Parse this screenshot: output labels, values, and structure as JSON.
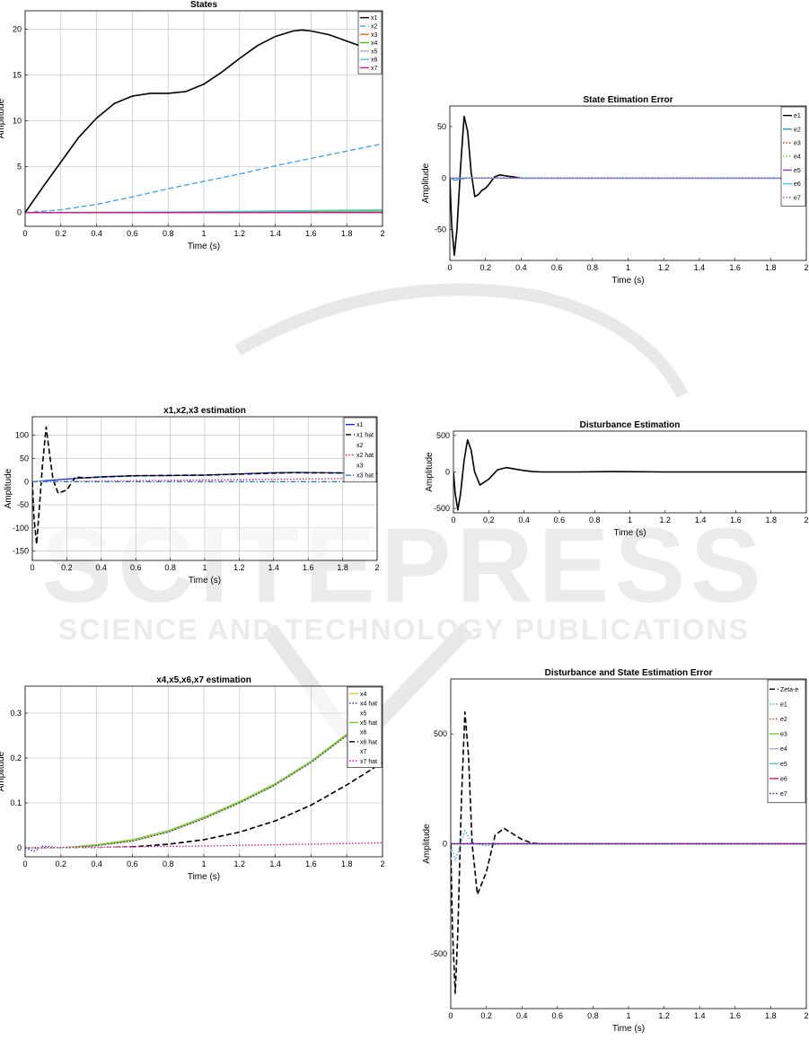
{
  "watermark": {
    "line1": "SCITEPRESS",
    "line2": "SCIENCE AND TECHNOLOGY PUBLICATIONS"
  },
  "chart_data": [
    {
      "id": "states",
      "type": "line",
      "title": "States",
      "xlabel": "Time (s)",
      "ylabel": "Amplitude",
      "xlim": [
        0,
        2
      ],
      "ylim": [
        -1.5,
        22
      ],
      "xticks": [
        0,
        0.2,
        0.4,
        0.6,
        0.8,
        1,
        1.2,
        1.4,
        1.6,
        1.8,
        2
      ],
      "yticks": [
        0,
        5,
        10,
        15,
        20
      ],
      "grid": true,
      "legend_position": "top-right",
      "series": [
        {
          "name": "x1",
          "color": "#000000",
          "dash": "solid",
          "x": [
            0,
            0.1,
            0.2,
            0.3,
            0.4,
            0.5,
            0.6,
            0.7,
            0.8,
            0.9,
            1.0,
            1.1,
            1.2,
            1.3,
            1.4,
            1.5,
            1.55,
            1.6,
            1.7,
            1.8,
            1.9,
            2.0
          ],
          "y": [
            0,
            2.8,
            5.5,
            8.2,
            10.3,
            11.9,
            12.7,
            13.0,
            13.0,
            13.2,
            14.0,
            15.3,
            16.8,
            18.2,
            19.2,
            19.8,
            19.9,
            19.8,
            19.4,
            18.7,
            18.0,
            17.3
          ]
        },
        {
          "name": "x2",
          "color": "#3aa0e8",
          "dash": "dashed",
          "x": [
            0,
            0.2,
            0.4,
            0.6,
            0.8,
            1.0,
            1.2,
            1.4,
            1.6,
            1.8,
            2.0
          ],
          "y": [
            0,
            0.3,
            0.9,
            1.7,
            2.6,
            3.4,
            4.2,
            5.1,
            5.9,
            6.7,
            7.5
          ]
        },
        {
          "name": "x3",
          "color": "#ff6b2b",
          "dash": "solid",
          "x": [
            0,
            1.0,
            2.0
          ],
          "y": [
            0,
            0,
            0
          ]
        },
        {
          "name": "x4",
          "color": "#4cbb17",
          "dash": "solid",
          "x": [
            0,
            1.0,
            2.0
          ],
          "y": [
            0,
            0.05,
            0.15
          ]
        },
        {
          "name": "x5",
          "color": "#b7a2e8",
          "dash": "solid",
          "x": [
            0,
            1.0,
            2.0
          ],
          "y": [
            0,
            0.02,
            0.05
          ]
        },
        {
          "name": "x6",
          "color": "#3fd0d4",
          "dash": "solid",
          "x": [
            0,
            0.5,
            1.0,
            1.5,
            2.0
          ],
          "y": [
            0,
            0.03,
            0.1,
            0.2,
            0.3
          ]
        },
        {
          "name": "x7",
          "color": "#d4148c",
          "dash": "solid",
          "x": [
            0,
            1.0,
            2.0
          ],
          "y": [
            0,
            0,
            0.01
          ]
        }
      ]
    },
    {
      "id": "state-error",
      "type": "line",
      "title": "State Etimation Error",
      "xlabel": "Time (s)",
      "ylabel": "Amplitude",
      "xlim": [
        0,
        2
      ],
      "ylim": [
        -80,
        70
      ],
      "xticks": [
        0,
        0.2,
        0.4,
        0.6,
        0.8,
        1,
        1.2,
        1.4,
        1.6,
        1.8,
        2
      ],
      "yticks": [
        -50,
        0,
        50
      ],
      "grid": false,
      "legend_position": "top-right",
      "series": [
        {
          "name": "e1",
          "color": "#000000",
          "dash": "solid",
          "x": [
            0,
            0.01,
            0.025,
            0.04,
            0.06,
            0.08,
            0.1,
            0.12,
            0.14,
            0.16,
            0.18,
            0.2,
            0.22,
            0.25,
            0.28,
            0.32,
            0.36,
            0.4,
            0.5,
            0.7,
            1.0,
            2.0
          ],
          "y": [
            0,
            -45,
            -75,
            -50,
            10,
            60,
            45,
            5,
            -18,
            -16,
            -12,
            -10,
            -6,
            1,
            3,
            2,
            1,
            0,
            0,
            0,
            0,
            0
          ]
        },
        {
          "name": "e2",
          "color": "#2b8fe8",
          "dash": "solid",
          "x": [
            0,
            0.03,
            0.06,
            0.1,
            0.2,
            2.0
          ],
          "y": [
            0,
            -2,
            -1,
            0,
            0,
            0
          ]
        },
        {
          "name": "e3",
          "color": "#e03030",
          "dash": "dotted",
          "x": [
            0,
            2.0
          ],
          "y": [
            0,
            0
          ]
        },
        {
          "name": "e4",
          "color": "#6fd02a",
          "dash": "dotted",
          "x": [
            0,
            2.0
          ],
          "y": [
            0,
            0
          ]
        },
        {
          "name": "e5",
          "color": "#8a3ee8",
          "dash": "solid",
          "x": [
            0,
            2.0
          ],
          "y": [
            0,
            0
          ]
        },
        {
          "name": "e6",
          "color": "#3fd0d4",
          "dash": "solid",
          "x": [
            0,
            2.0
          ],
          "y": [
            0,
            0
          ]
        },
        {
          "name": "e7",
          "color": "#e014d4",
          "dash": "dotted",
          "x": [
            0,
            2.0
          ],
          "y": [
            0,
            0
          ]
        }
      ]
    },
    {
      "id": "x123",
      "type": "line",
      "title": "x1,x2,x3 estimation",
      "xlabel": "Time (s)",
      "ylabel": "Amplitude",
      "xlim": [
        0,
        2
      ],
      "ylim": [
        -170,
        140
      ],
      "xticks": [
        0,
        0.2,
        0.4,
        0.6,
        0.8,
        1,
        1.2,
        1.4,
        1.6,
        1.8,
        2
      ],
      "yticks": [
        -150,
        -100,
        -50,
        0,
        50,
        100
      ],
      "grid": true,
      "legend_position": "top-right",
      "series": [
        {
          "name": "x1",
          "color": "#1a24d8",
          "dash": "solid",
          "x": [
            0,
            0.2,
            0.4,
            0.6,
            0.8,
            1.0,
            1.2,
            1.4,
            1.55,
            1.8,
            2.0
          ],
          "y": [
            0,
            5.5,
            10.3,
            12.7,
            13.0,
            14.0,
            16.8,
            19.2,
            19.9,
            18.7,
            17.3
          ]
        },
        {
          "name": "x1 hat",
          "color": "#000000",
          "dash": "dashed",
          "x": [
            0,
            0.01,
            0.025,
            0.04,
            0.06,
            0.08,
            0.1,
            0.12,
            0.15,
            0.2,
            0.25,
            0.3,
            0.4,
            0.6,
            1.0,
            1.5,
            1.8,
            2.0
          ],
          "y": [
            0,
            -80,
            -135,
            -60,
            40,
            118,
            60,
            5,
            -25,
            -18,
            10,
            8,
            10,
            12.7,
            14,
            19.2,
            18.7,
            17.3
          ]
        },
        {
          "name": "x2",
          "color": "#ffffff",
          "dash": "solid",
          "x": [
            0,
            2.0
          ],
          "y": [
            0,
            0
          ]
        },
        {
          "name": "x2 hat",
          "color": "#d4148c",
          "dash": "dotted",
          "x": [
            0,
            1.0,
            2.0
          ],
          "y": [
            0,
            3.4,
            7.5
          ]
        },
        {
          "name": "x3",
          "color": "#ffffff",
          "dash": "solid",
          "x": [
            0,
            2.0
          ],
          "y": [
            0,
            0
          ]
        },
        {
          "name": "x3 hat",
          "color": "#2a7fd4",
          "dash": "dashdot",
          "x": [
            0,
            2.0
          ],
          "y": [
            0,
            0
          ]
        }
      ]
    },
    {
      "id": "disturbance",
      "type": "line",
      "title": "Disturbance Estimation",
      "xlabel": "Time (s)",
      "ylabel": "Amplitude",
      "xlim": [
        0,
        2
      ],
      "ylim": [
        -560,
        560
      ],
      "xticks": [
        0,
        0.2,
        0.4,
        0.6,
        0.8,
        1,
        1.2,
        1.4,
        1.6,
        1.8,
        2
      ],
      "yticks": [
        -500,
        0,
        500
      ],
      "grid": false,
      "legend_position": "none",
      "series": [
        {
          "name": "",
          "color": "#000000",
          "dash": "solid",
          "x": [
            0,
            0.01,
            0.025,
            0.04,
            0.06,
            0.08,
            0.1,
            0.12,
            0.15,
            0.2,
            0.25,
            0.3,
            0.35,
            0.4,
            0.45,
            0.5,
            0.7,
            0.9,
            1.2,
            1.5,
            2.0
          ],
          "y": [
            0,
            -300,
            -520,
            -300,
            150,
            440,
            300,
            0,
            -180,
            -100,
            30,
            60,
            40,
            20,
            5,
            0,
            0,
            5,
            0,
            0,
            0
          ]
        }
      ]
    },
    {
      "id": "x4567",
      "type": "line",
      "title": "x4,x5,x6,x7 estimation",
      "xlabel": "Time (s)",
      "ylabel": "Amplitude",
      "xlim": [
        0,
        2
      ],
      "ylim": [
        -0.02,
        0.36
      ],
      "xticks": [
        0,
        0.2,
        0.4,
        0.6,
        0.8,
        1,
        1.2,
        1.4,
        1.6,
        1.8,
        2
      ],
      "yticks": [
        0,
        0.1,
        0.2,
        0.3
      ],
      "grid": true,
      "legend_position": "top-right",
      "series": [
        {
          "name": "x4",
          "color": "#e8c930",
          "dash": "solid",
          "x": [
            0,
            0.2,
            0.4,
            0.6,
            0.8,
            1.0,
            1.2,
            1.4,
            1.6,
            1.8,
            2.0
          ],
          "y": [
            0,
            0.0,
            0.005,
            0.015,
            0.035,
            0.065,
            0.1,
            0.14,
            0.19,
            0.25,
            0.31
          ]
        },
        {
          "name": "x4 hat",
          "color": "#1a24d8",
          "dash": "dotted",
          "x": [
            0,
            0.05,
            0.1,
            0.2,
            0.4,
            0.6,
            0.8,
            1.0,
            1.2,
            1.4,
            1.6,
            1.8,
            2.0
          ],
          "y": [
            0,
            -0.008,
            0.004,
            0.0,
            0.005,
            0.015,
            0.035,
            0.065,
            0.1,
            0.14,
            0.19,
            0.25,
            0.31
          ]
        },
        {
          "name": "x5",
          "color": "#ffffff",
          "dash": "solid",
          "x": [
            0,
            2.0
          ],
          "y": [
            0,
            0
          ]
        },
        {
          "name": "x5 hat",
          "color": "#6fd02a",
          "dash": "solid",
          "x": [
            0,
            0.2,
            0.4,
            0.6,
            0.8,
            1.0,
            1.2,
            1.4,
            1.6,
            1.8,
            2.0
          ],
          "y": [
            0,
            0.0,
            0.007,
            0.018,
            0.038,
            0.068,
            0.103,
            0.143,
            0.193,
            0.253,
            0.315
          ]
        },
        {
          "name": "x6",
          "color": "#ffffff",
          "dash": "solid",
          "x": [
            0,
            2.0
          ],
          "y": [
            0,
            0
          ]
        },
        {
          "name": "x6 hat",
          "color": "#000000",
          "dash": "dashed",
          "x": [
            0,
            0.2,
            0.4,
            0.6,
            0.8,
            1.0,
            1.2,
            1.4,
            1.6,
            1.8,
            2.0
          ],
          "y": [
            0,
            0,
            0,
            0.002,
            0.008,
            0.018,
            0.035,
            0.06,
            0.095,
            0.14,
            0.19
          ]
        },
        {
          "name": "x7",
          "color": "#ffffff",
          "dash": "solid",
          "x": [
            0,
            2.0
          ],
          "y": [
            0,
            0
          ]
        },
        {
          "name": "x7 hat",
          "color": "#d4148c",
          "dash": "dotted",
          "x": [
            0,
            1.0,
            2.0
          ],
          "y": [
            0,
            0.004,
            0.011
          ]
        }
      ]
    },
    {
      "id": "dist-state-error",
      "type": "line",
      "title": "Disturbance and State Estimation Error",
      "xlabel": "Time (s)",
      "ylabel": "Amplitude",
      "xlim": [
        0,
        2
      ],
      "ylim": [
        -750,
        750
      ],
      "xticks": [
        0,
        0.2,
        0.4,
        0.6,
        0.8,
        1,
        1.2,
        1.4,
        1.6,
        1.8,
        2
      ],
      "yticks": [
        -500,
        0,
        500
      ],
      "grid": false,
      "legend_position": "top-right",
      "series": [
        {
          "name": "Zeta-e",
          "color": "#000000",
          "dash": "dashed",
          "x": [
            0,
            0.01,
            0.025,
            0.04,
            0.06,
            0.08,
            0.1,
            0.12,
            0.15,
            0.2,
            0.25,
            0.3,
            0.35,
            0.4,
            0.45,
            0.5,
            0.7,
            1.0,
            2.0
          ],
          "y": [
            0,
            -400,
            -680,
            -400,
            200,
            600,
            400,
            0,
            -230,
            -130,
            40,
            70,
            45,
            20,
            5,
            0,
            0,
            0,
            0
          ]
        },
        {
          "name": "e1",
          "color": "#2aa8e0",
          "dash": "dotted",
          "x": [
            0,
            0.025,
            0.06,
            0.08,
            0.12,
            0.2,
            0.3,
            2.0
          ],
          "y": [
            0,
            -75,
            10,
            60,
            5,
            -10,
            2,
            0
          ]
        },
        {
          "name": "e2",
          "color": "#e03030",
          "dash": "dotted",
          "x": [
            0,
            2.0
          ],
          "y": [
            0,
            0
          ]
        },
        {
          "name": "e3",
          "color": "#6fd02a",
          "dash": "solid",
          "x": [
            0,
            2.0
          ],
          "y": [
            0,
            0
          ]
        },
        {
          "name": "e4",
          "color": "#b7a2e8",
          "dash": "solid",
          "x": [
            0,
            2.0
          ],
          "y": [
            0,
            0
          ]
        },
        {
          "name": "e5",
          "color": "#3fd0d4",
          "dash": "solid",
          "x": [
            0,
            2.0
          ],
          "y": [
            0,
            0
          ]
        },
        {
          "name": "e6",
          "color": "#d4148c",
          "dash": "solid",
          "x": [
            0,
            2.0
          ],
          "y": [
            0,
            0
          ]
        },
        {
          "name": "e7",
          "color": "#1a24a8",
          "dash": "dotted",
          "x": [
            0,
            2.0
          ],
          "y": [
            0,
            0
          ]
        }
      ]
    }
  ]
}
